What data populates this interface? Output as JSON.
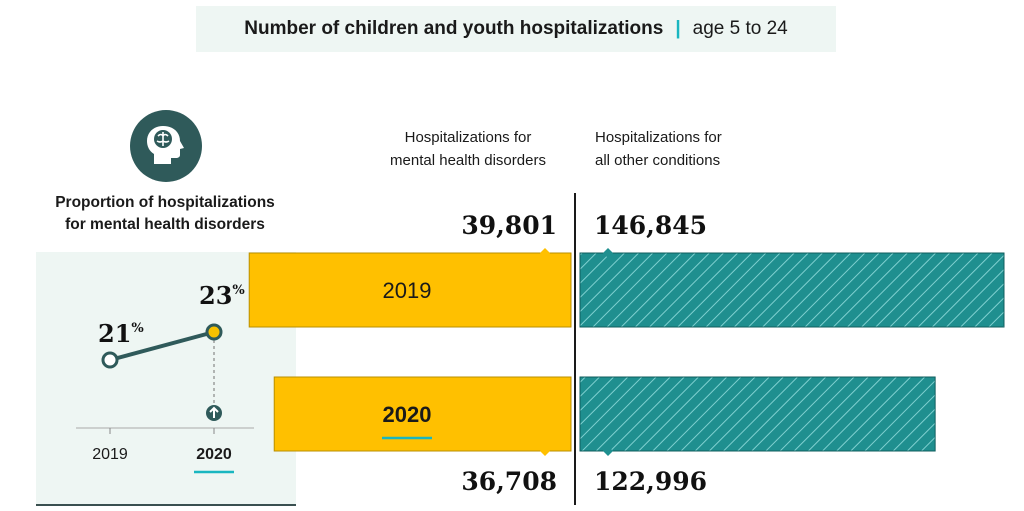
{
  "header": {
    "title": "Number of children and youth hospitalizations",
    "separator": "|",
    "subtitle": "age 5 to 24"
  },
  "left_panel": {
    "icon": "head-brain-icon",
    "title_line1": "Proportion of hospitalizations",
    "title_line2": "for mental health disorders",
    "highlight_color": "#19b6c0"
  },
  "columns": {
    "mental_line1": "Hospitalizations for",
    "mental_line2": "mental health disorders",
    "other_line1": "Hospitalizations for",
    "other_line2": "all other conditions"
  },
  "chart_data": [
    {
      "type": "line",
      "title": "Proportion of hospitalizations for mental health disorders",
      "x": [
        "2019",
        "2020"
      ],
      "series": [
        {
          "values": [
            21,
            23
          ],
          "unit": "%",
          "labels": [
            "21",
            "23"
          ]
        }
      ],
      "increase_marker": "arrow-up-icon",
      "highlight_x": "2020",
      "colors": {
        "line": "#2f5a5a",
        "2019_point": "#ffffff",
        "2020_point": "#f7c100"
      }
    },
    {
      "type": "bar",
      "title": "Number of children and youth hospitalizations",
      "categories": [
        "2019",
        "2020"
      ],
      "highlight_category": "2020",
      "series": [
        {
          "name": "Hospitalizations for mental health disorders",
          "values": [
            39801,
            36708
          ],
          "labels": [
            "39,801",
            "36,708"
          ],
          "color": "#ffc000"
        },
        {
          "name": "Hospitalizations for all other conditions",
          "values": [
            146845,
            122996
          ],
          "labels": [
            "146,845",
            "122,996"
          ],
          "color": "#1f8f8f"
        }
      ]
    }
  ]
}
